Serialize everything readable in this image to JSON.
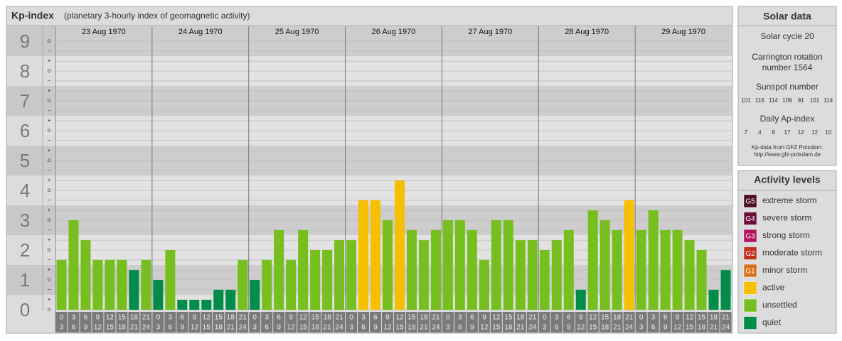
{
  "header": {
    "title": "Kp-index",
    "subtitle": "(planetary 3-hourly index of geomagnetic activity)"
  },
  "chart_data": {
    "type": "bar",
    "days": [
      "23 Aug 1970",
      "24 Aug 1970",
      "25 Aug 1970",
      "26 Aug 1970",
      "27 Aug 1970",
      "28 Aug 1970",
      "29 Aug 1970"
    ],
    "time_labels": [
      {
        "start": "0",
        "end": "3"
      },
      {
        "start": "3",
        "end": "6"
      },
      {
        "start": "6",
        "end": "9"
      },
      {
        "start": "9",
        "end": "12"
      },
      {
        "start": "12",
        "end": "15"
      },
      {
        "start": "15",
        "end": "18"
      },
      {
        "start": "18",
        "end": "21"
      },
      {
        "start": "21",
        "end": "24"
      }
    ],
    "values": [
      1.67,
      3,
      2.33,
      1.67,
      1.67,
      1.67,
      1.33,
      1.67,
      1,
      2,
      0.33,
      0.33,
      0.33,
      0.67,
      0.67,
      1.67,
      1,
      1.67,
      2.67,
      1.67,
      2.67,
      2,
      2,
      2.33,
      2.33,
      3.67,
      3.67,
      3,
      4.33,
      2.67,
      2.33,
      2.67,
      3,
      3,
      2.67,
      1.67,
      3,
      3,
      2.33,
      2.33,
      2,
      2.33,
      2.67,
      0.67,
      3.33,
      3,
      2.67,
      3.67,
      2.67,
      3.33,
      2.67,
      2.67,
      2.33,
      2,
      0.67,
      1.33
    ],
    "colors": [
      "#76bf1e",
      "#76bf1e",
      "#76bf1e",
      "#76bf1e",
      "#76bf1e",
      "#76bf1e",
      "#008c49",
      "#76bf1e",
      "#008c49",
      "#76bf1e",
      "#008c49",
      "#008c49",
      "#008c49",
      "#008c49",
      "#008c49",
      "#76bf1e",
      "#008c49",
      "#76bf1e",
      "#76bf1e",
      "#76bf1e",
      "#76bf1e",
      "#76bf1e",
      "#76bf1e",
      "#76bf1e",
      "#76bf1e",
      "#f6bf00",
      "#f6bf00",
      "#76bf1e",
      "#f6bf00",
      "#76bf1e",
      "#76bf1e",
      "#76bf1e",
      "#76bf1e",
      "#76bf1e",
      "#76bf1e",
      "#76bf1e",
      "#76bf1e",
      "#76bf1e",
      "#76bf1e",
      "#76bf1e",
      "#76bf1e",
      "#76bf1e",
      "#76bf1e",
      "#008c49",
      "#76bf1e",
      "#76bf1e",
      "#76bf1e",
      "#f6bf00",
      "#76bf1e",
      "#76bf1e",
      "#76bf1e",
      "#76bf1e",
      "#76bf1e",
      "#76bf1e",
      "#008c49",
      "#008c49"
    ],
    "ylim": [
      0,
      9.5
    ],
    "major_ticks": [
      0,
      1,
      2,
      3,
      4,
      5,
      6,
      7,
      8,
      9
    ],
    "yticks": [
      {
        "value": 0,
        "label": "o"
      },
      {
        "value": 0.33,
        "label": "+"
      },
      {
        "value": 0.67,
        "label": "–"
      },
      {
        "value": 1,
        "label": "o"
      },
      {
        "value": 1.33,
        "label": "+"
      },
      {
        "value": 1.67,
        "label": "–"
      },
      {
        "value": 2,
        "label": "o"
      },
      {
        "value": 2.33,
        "label": "+"
      },
      {
        "value": 2.67,
        "label": "–"
      },
      {
        "value": 3,
        "label": "o"
      },
      {
        "value": 3.33,
        "label": "+"
      },
      {
        "value": 3.67,
        "label": "–"
      },
      {
        "value": 4,
        "label": "o"
      },
      {
        "value": 4.33,
        "label": "+"
      },
      {
        "value": 4.67,
        "label": "–"
      },
      {
        "value": 5,
        "label": "o"
      },
      {
        "value": 5.33,
        "label": "+"
      },
      {
        "value": 5.67,
        "label": "–"
      },
      {
        "value": 6,
        "label": "o"
      },
      {
        "value": 6.33,
        "label": "+"
      },
      {
        "value": 6.67,
        "label": "–"
      },
      {
        "value": 7,
        "label": "o"
      },
      {
        "value": 7.33,
        "label": "+"
      },
      {
        "value": 7.67,
        "label": "–"
      },
      {
        "value": 8,
        "label": "o"
      },
      {
        "value": 8.33,
        "label": "+"
      },
      {
        "value": 8.67,
        "label": "–"
      },
      {
        "value": 9,
        "label": "o"
      }
    ]
  },
  "solar_data": {
    "title": "Solar data",
    "cycle": "Solar cycle 20",
    "carrington": [
      "Carrington rotation",
      "number 1564"
    ],
    "sunspot_title": "Sunspot number",
    "sunspot": [
      101,
      116,
      114,
      109,
      91,
      101,
      114
    ],
    "ap_title": "Daily Ap-index",
    "ap": [
      7,
      4,
      8,
      17,
      12,
      12,
      10
    ],
    "source": [
      "Kp-data from GFZ Potsdam:",
      "http://www.gfz-potsdam.de"
    ]
  },
  "activity_levels": {
    "title": "Activity levels",
    "items": [
      {
        "badge": "G5",
        "label": "extreme storm",
        "color": "#4b0a26"
      },
      {
        "badge": "G4",
        "label": "severe storm",
        "color": "#6b0f3a"
      },
      {
        "badge": "G3",
        "label": "strong storm",
        "color": "#b0125e"
      },
      {
        "badge": "G2",
        "label": "moderate storm",
        "color": "#c0301d"
      },
      {
        "badge": "G1",
        "label": "minor storm",
        "color": "#d9711a"
      },
      {
        "badge": null,
        "label": "active",
        "color": "#f6bf00"
      },
      {
        "badge": null,
        "label": "unsettled",
        "color": "#76bf1e"
      },
      {
        "badge": null,
        "label": "quiet",
        "color": "#008c49"
      }
    ]
  }
}
